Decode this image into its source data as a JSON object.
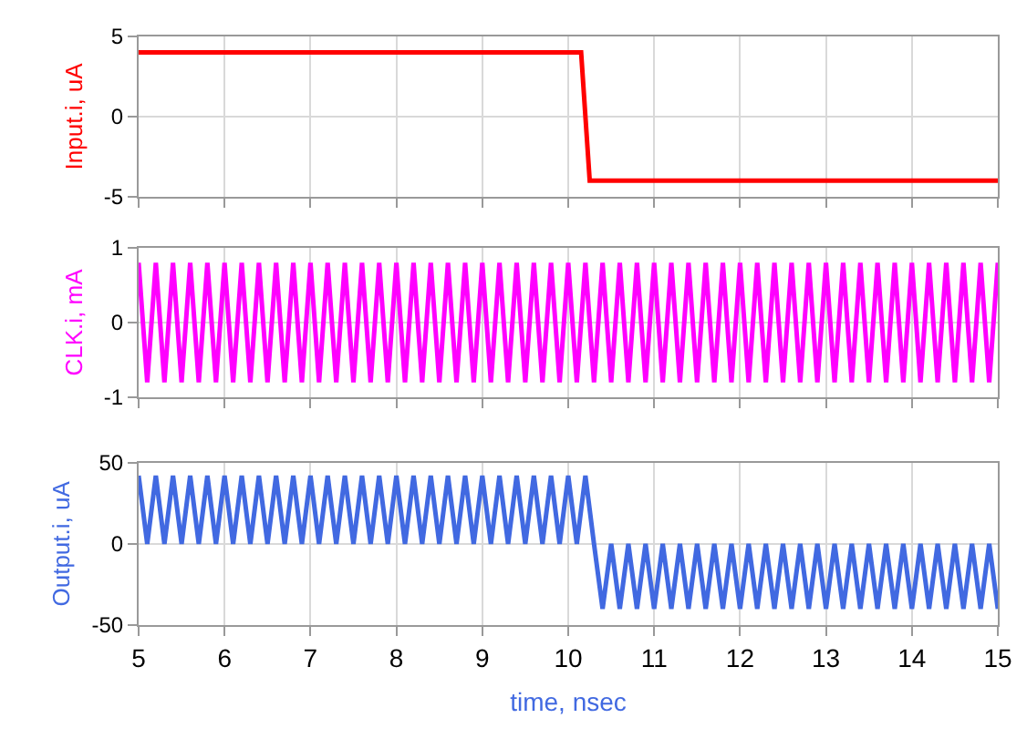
{
  "chart_data": [
    {
      "type": "line",
      "ylabel": "Input.i, uA",
      "x": [
        5,
        10.15,
        10.25,
        15
      ],
      "series": [
        {
          "color": "#ff0000",
          "values": [
            4,
            4,
            -4,
            -4
          ]
        }
      ],
      "xlim": [
        5,
        15
      ],
      "xticks": [
        5,
        6,
        7,
        8,
        9,
        10,
        11,
        12,
        13,
        14,
        15
      ],
      "ylim": [
        -5,
        5
      ],
      "yticks": [
        -5,
        0,
        5
      ],
      "grid": true,
      "tick_labels": "y",
      "legend": false
    },
    {
      "type": "line",
      "ylabel": "CLK.i, mA",
      "x": [
        5,
        5.1,
        5.2,
        5.3,
        5.4,
        5.5,
        5.6,
        5.7,
        5.8,
        5.9,
        6,
        6.1,
        6.2,
        6.3,
        6.4,
        6.5,
        6.6,
        6.7,
        6.8,
        6.9,
        7,
        7.1,
        7.2,
        7.3,
        7.4,
        7.5,
        7.6,
        7.7,
        7.8,
        7.9,
        8,
        8.1,
        8.2,
        8.3,
        8.4,
        8.5,
        8.6,
        8.7,
        8.8,
        8.9,
        9,
        9.1,
        9.2,
        9.3,
        9.4,
        9.5,
        9.6,
        9.7,
        9.8,
        9.9,
        10,
        10.1,
        10.2,
        10.3,
        10.4,
        10.5,
        10.6,
        10.7,
        10.8,
        10.9,
        11,
        11.1,
        11.2,
        11.3,
        11.4,
        11.5,
        11.6,
        11.7,
        11.8,
        11.9,
        12,
        12.1,
        12.2,
        12.3,
        12.4,
        12.5,
        12.6,
        12.7,
        12.8,
        12.9,
        13,
        13.1,
        13.2,
        13.3,
        13.4,
        13.5,
        13.6,
        13.7,
        13.8,
        13.9,
        14,
        14.1,
        14.2,
        14.3,
        14.4,
        14.5,
        14.6,
        14.7,
        14.8,
        14.9,
        15
      ],
      "series": [
        {
          "color": "#ff00ff",
          "values": [
            0.8,
            -0.8,
            0.8,
            -0.8,
            0.8,
            -0.8,
            0.8,
            -0.8,
            0.8,
            -0.8,
            0.8,
            -0.8,
            0.8,
            -0.8,
            0.8,
            -0.8,
            0.8,
            -0.8,
            0.8,
            -0.8,
            0.8,
            -0.8,
            0.8,
            -0.8,
            0.8,
            -0.8,
            0.8,
            -0.8,
            0.8,
            -0.8,
            0.8,
            -0.8,
            0.8,
            -0.8,
            0.8,
            -0.8,
            0.8,
            -0.8,
            0.8,
            -0.8,
            0.8,
            -0.8,
            0.8,
            -0.8,
            0.8,
            -0.8,
            0.8,
            -0.8,
            0.8,
            -0.8,
            0.8,
            -0.8,
            0.8,
            -0.8,
            0.8,
            -0.8,
            0.8,
            -0.8,
            0.8,
            -0.8,
            0.8,
            -0.8,
            0.8,
            -0.8,
            0.8,
            -0.8,
            0.8,
            -0.8,
            0.8,
            -0.8,
            0.8,
            -0.8,
            0.8,
            -0.8,
            0.8,
            -0.8,
            0.8,
            -0.8,
            0.8,
            -0.8,
            0.8,
            -0.8,
            0.8,
            -0.8,
            0.8,
            -0.8,
            0.8,
            -0.8,
            0.8,
            -0.8,
            0.8,
            -0.8,
            0.8,
            -0.8,
            0.8,
            -0.8,
            0.8,
            -0.8,
            0.8,
            -0.8,
            0.8
          ]
        }
      ],
      "xlim": [
        5,
        15
      ],
      "xticks": [
        5,
        6,
        7,
        8,
        9,
        10,
        11,
        12,
        13,
        14,
        15
      ],
      "ylim": [
        -1,
        1
      ],
      "yticks": [
        -1,
        0,
        1
      ],
      "grid": true,
      "tick_labels": "y",
      "legend": false
    },
    {
      "type": "line",
      "ylabel": "Output.i, uA",
      "xlabel": "time, nsec",
      "x": [
        5,
        5.1,
        5.2,
        5.3,
        5.4,
        5.5,
        5.6,
        5.7,
        5.8,
        5.9,
        6,
        6.1,
        6.2,
        6.3,
        6.4,
        6.5,
        6.6,
        6.7,
        6.8,
        6.9,
        7,
        7.1,
        7.2,
        7.3,
        7.4,
        7.5,
        7.6,
        7.7,
        7.8,
        7.9,
        8,
        8.1,
        8.2,
        8.3,
        8.4,
        8.5,
        8.6,
        8.7,
        8.8,
        8.9,
        9,
        9.1,
        9.2,
        9.3,
        9.4,
        9.5,
        9.6,
        9.7,
        9.8,
        9.9,
        10,
        10.1,
        10.2,
        10.3,
        10.4,
        10.5,
        10.6,
        10.7,
        10.8,
        10.9,
        11,
        11.1,
        11.2,
        11.3,
        11.4,
        11.5,
        11.6,
        11.7,
        11.8,
        11.9,
        12,
        12.1,
        12.2,
        12.3,
        12.4,
        12.5,
        12.6,
        12.7,
        12.8,
        12.9,
        13,
        13.1,
        13.2,
        13.3,
        13.4,
        13.5,
        13.6,
        13.7,
        13.8,
        13.9,
        14,
        14.1,
        14.2,
        14.3,
        14.4,
        14.5,
        14.6,
        14.7,
        14.8,
        14.9,
        15
      ],
      "series": [
        {
          "color": "#4169e1",
          "values": [
            42,
            0,
            42,
            0,
            42,
            0,
            42,
            0,
            42,
            0,
            42,
            0,
            42,
            0,
            42,
            0,
            42,
            0,
            42,
            0,
            42,
            0,
            42,
            0,
            42,
            0,
            42,
            0,
            42,
            0,
            42,
            0,
            42,
            0,
            42,
            0,
            42,
            0,
            42,
            0,
            42,
            0,
            42,
            0,
            42,
            0,
            42,
            0,
            42,
            0,
            42,
            0,
            42,
            0,
            -40,
            0,
            -40,
            0,
            -40,
            0,
            -40,
            0,
            -40,
            0,
            -40,
            0,
            -40,
            0,
            -40,
            0,
            -40,
            0,
            -40,
            0,
            -40,
            0,
            -40,
            0,
            -40,
            0,
            -40,
            0,
            -40,
            0,
            -40,
            0,
            -40,
            0,
            -40,
            0,
            -40,
            0,
            -40,
            0,
            -40,
            0,
            -40,
            0,
            -40,
            0,
            -40
          ]
        }
      ],
      "xlim": [
        5,
        15
      ],
      "xticks": [
        5,
        6,
        7,
        8,
        9,
        10,
        11,
        12,
        13,
        14,
        15
      ],
      "ylim": [
        -50,
        50
      ],
      "yticks": [
        -50,
        0,
        50
      ],
      "grid": true,
      "legend": false
    }
  ]
}
